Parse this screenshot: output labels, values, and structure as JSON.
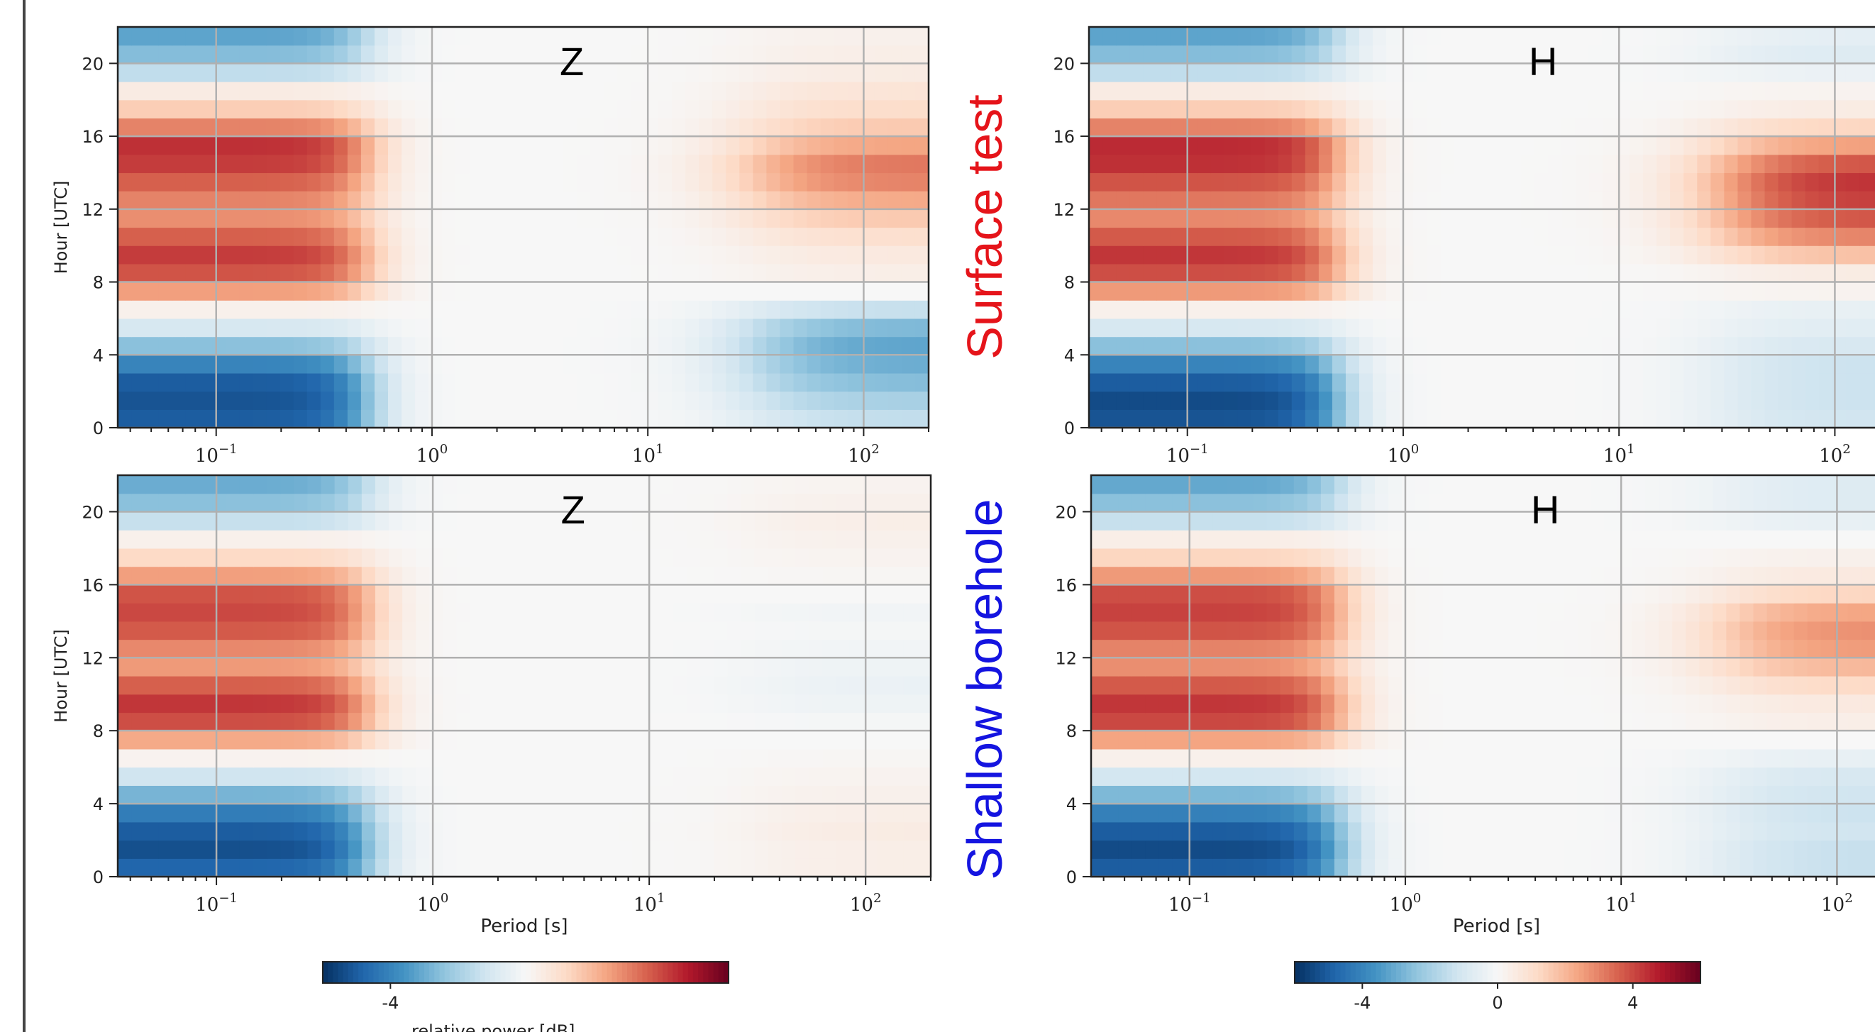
{
  "colormap": {
    "stops": [
      "#053061",
      "#2166ac",
      "#4393c3",
      "#92c5de",
      "#d1e5f0",
      "#f7f7f7",
      "#fddbc7",
      "#f4a582",
      "#d6604d",
      "#b2182b",
      "#67001f"
    ]
  },
  "chart_data": [
    {
      "type": "heatmap",
      "title": "Z",
      "row_label": "Surface test",
      "xlabel": "",
      "ylabel": "Hour [UTC]",
      "x_scale": "log",
      "x_ticks": [
        0.1,
        1,
        10,
        100
      ],
      "x_tick_labels": [
        "10^-1",
        "10^0",
        "10^1",
        "10^2"
      ],
      "xlim": [
        0.035,
        200
      ],
      "ylim": [
        0,
        22
      ],
      "y_ticks": [
        0,
        4,
        8,
        12,
        16,
        20
      ],
      "hours": [
        0,
        1,
        2,
        3,
        4,
        5,
        6,
        7,
        8,
        9,
        10,
        11,
        12,
        13,
        14,
        15,
        16,
        17,
        18,
        19,
        20,
        21
      ],
      "hf_amplitude_db": [
        -5.0,
        -5.2,
        -5.0,
        -4.0,
        -2.5,
        -1.0,
        0.3,
        2.5,
        3.8,
        4.2,
        3.6,
        2.8,
        3.0,
        3.6,
        4.2,
        4.4,
        3.0,
        1.5,
        0.5,
        -1.5,
        -2.6,
        -3.2
      ],
      "lp_amplitude_db": [
        -1.5,
        -2.0,
        -2.6,
        -3.0,
        -3.2,
        -2.7,
        -1.4,
        0.0,
        0.4,
        0.6,
        1.0,
        1.6,
        2.3,
        3.0,
        3.2,
        2.4,
        1.6,
        1.1,
        0.8,
        0.5,
        0.4,
        0.3
      ]
    },
    {
      "type": "heatmap",
      "title": "H",
      "row_label": "Surface test",
      "xlabel": "",
      "ylabel": "",
      "x_scale": "log",
      "x_ticks": [
        0.1,
        1,
        10,
        100
      ],
      "x_tick_labels": [
        "10^-1",
        "10^0",
        "10^1",
        "10^2"
      ],
      "xlim": [
        0.035,
        200
      ],
      "ylim": [
        0,
        22
      ],
      "y_ticks": [
        0,
        4,
        8,
        12,
        16,
        20
      ],
      "hours": [
        0,
        1,
        2,
        3,
        4,
        5,
        6,
        7,
        8,
        9,
        10,
        11,
        12,
        13,
        14,
        15,
        16,
        17,
        18,
        19,
        20,
        21
      ],
      "hf_amplitude_db": [
        -5.2,
        -5.4,
        -5.0,
        -4.0,
        -2.5,
        -1.0,
        0.3,
        2.6,
        3.9,
        4.3,
        3.7,
        2.9,
        3.2,
        3.8,
        4.4,
        4.5,
        3.0,
        1.5,
        0.5,
        -1.5,
        -2.6,
        -3.2
      ],
      "lp_amplitude_db": [
        -1.2,
        -1.3,
        -1.3,
        -1.3,
        -1.0,
        -0.7,
        -0.5,
        0.2,
        0.5,
        1.8,
        3.0,
        3.8,
        4.2,
        4.4,
        3.8,
        2.5,
        1.3,
        0.5,
        0.2,
        -0.4,
        -0.8,
        -0.6
      ]
    },
    {
      "type": "heatmap",
      "title": "Z",
      "row_label": "Shallow borehole",
      "xlabel": "Period [s]",
      "ylabel": "Hour [UTC]",
      "x_scale": "log",
      "x_ticks": [
        0.1,
        1,
        10,
        100
      ],
      "x_tick_labels": [
        "10^-1",
        "10^0",
        "10^1",
        "10^2"
      ],
      "xlim": [
        0.035,
        200
      ],
      "ylim": [
        0,
        22
      ],
      "y_ticks": [
        0,
        4,
        8,
        12,
        16,
        20
      ],
      "hours": [
        0,
        1,
        2,
        3,
        4,
        5,
        6,
        7,
        8,
        9,
        10,
        11,
        12,
        13,
        14,
        15,
        16,
        17,
        18,
        19,
        20,
        21
      ],
      "hf_amplitude_db": [
        -4.8,
        -5.3,
        -5.0,
        -4.2,
        -2.8,
        -1.2,
        0.2,
        2.3,
        3.9,
        4.3,
        3.6,
        2.6,
        2.9,
        3.7,
        4.0,
        3.8,
        2.5,
        1.2,
        0.3,
        -1.4,
        -2.5,
        -3.0
      ],
      "lp_amplitude_db": [
        0.4,
        0.4,
        0.5,
        0.4,
        0.3,
        0.2,
        0.1,
        0.0,
        -0.1,
        -0.3,
        -0.4,
        -0.3,
        -0.2,
        -0.1,
        -0.2,
        0.0,
        0.1,
        0.2,
        0.3,
        0.4,
        0.3,
        0.2
      ]
    },
    {
      "type": "heatmap",
      "title": "H",
      "row_label": "Shallow borehole",
      "xlabel": "Period [s]",
      "ylabel": "",
      "x_scale": "log",
      "x_ticks": [
        0.1,
        1,
        10,
        100
      ],
      "x_tick_labels": [
        "10^-1",
        "10^0",
        "10^1",
        "10^2"
      ],
      "xlim": [
        0.035,
        200
      ],
      "ylim": [
        0,
        22
      ],
      "y_ticks": [
        0,
        4,
        8,
        12,
        16,
        20
      ],
      "hours": [
        0,
        1,
        2,
        3,
        4,
        5,
        6,
        7,
        8,
        9,
        10,
        11,
        12,
        13,
        14,
        15,
        16,
        17,
        18,
        19,
        20,
        21
      ],
      "hf_amplitude_db": [
        -5.0,
        -5.4,
        -5.0,
        -4.1,
        -2.7,
        -1.1,
        0.3,
        2.4,
        4.0,
        4.3,
        3.7,
        2.8,
        3.0,
        3.8,
        4.1,
        3.9,
        2.6,
        1.3,
        0.4,
        -1.4,
        -2.5,
        -3.1
      ],
      "lp_amplitude_db": [
        -1.4,
        -1.4,
        -1.2,
        -1.3,
        -1.2,
        -1.0,
        -0.5,
        0.0,
        0.4,
        0.6,
        1.2,
        2.0,
        2.6,
        2.8,
        2.4,
        1.3,
        0.6,
        0.3,
        0.0,
        -0.5,
        -0.8,
        -0.8
      ]
    }
  ],
  "colorbars": [
    {
      "label": "relative power [dB]",
      "vmin": -6,
      "vmax": 6,
      "ticks": [
        -4
      ],
      "tick_labels": [
        "-4"
      ]
    },
    {
      "label": "",
      "vmin": -6,
      "vmax": 6,
      "ticks": [
        -4,
        0,
        4
      ],
      "tick_labels": [
        "-4",
        "0",
        "4"
      ]
    }
  ]
}
